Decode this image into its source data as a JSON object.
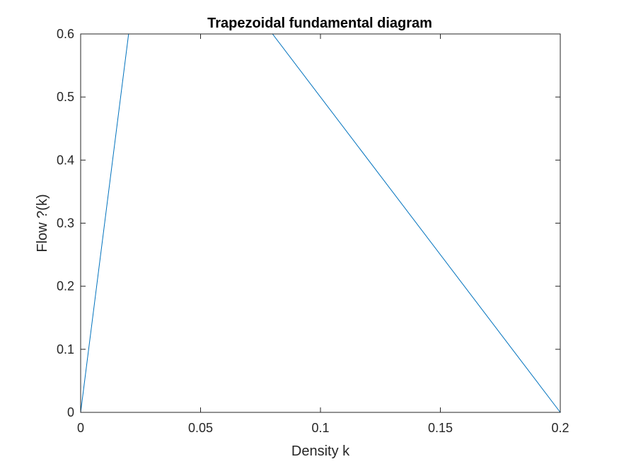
{
  "chart_data": {
    "type": "line",
    "title": "Trapezoidal fundamental diagram",
    "xlabel": "Density k",
    "ylabel": "Flow ?(k)",
    "xlim": [
      0,
      0.2
    ],
    "ylim": [
      0,
      0.6
    ],
    "xticks": [
      0,
      0.05,
      0.1,
      0.15,
      0.2
    ],
    "xtick_labels": [
      "0",
      "0.05",
      "0.1",
      "0.15",
      "0.2"
    ],
    "yticks": [
      0,
      0.1,
      0.2,
      0.3,
      0.4,
      0.5,
      0.6
    ],
    "ytick_labels": [
      "0",
      "0.1",
      "0.2",
      "0.3",
      "0.4",
      "0.5",
      "0.6"
    ],
    "grid": false,
    "series": [
      {
        "color": "#0072BD",
        "x": [
          0,
          0.02,
          0.08,
          0.2
        ],
        "y": [
          0,
          0.6,
          0.6,
          0
        ]
      }
    ]
  }
}
